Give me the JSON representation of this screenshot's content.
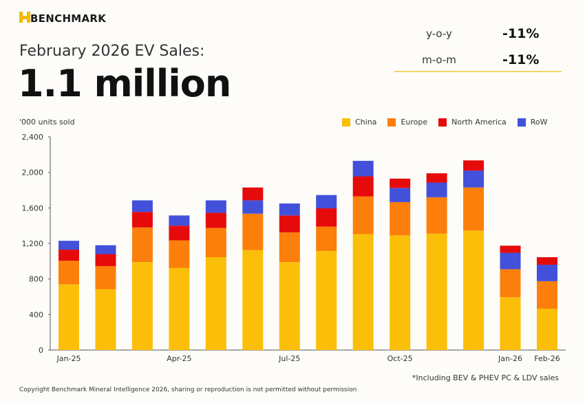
{
  "brand": {
    "name": "BENCHMARK"
  },
  "header": {
    "title": "February 2026 EV Sales:",
    "headline": "1.1 million"
  },
  "kpis": [
    {
      "label": "y-o-y",
      "value": "-11%"
    },
    {
      "label": "m-o-m",
      "value": "-11%"
    }
  ],
  "footnote": "*Including BEV & PHEV PC & LDV sales",
  "copyright": "Copyright Benchmark Mineral Intelligence 2026, sharing or reproduction is not permitted without permission",
  "chart_data": {
    "type": "bar",
    "stacked": true,
    "ylabel": "'000 units sold",
    "ylim": [
      0,
      2400
    ],
    "yticks": [
      "0",
      "400",
      "800",
      "1,200",
      "1,600",
      "2,000",
      "2,400"
    ],
    "ytick_values": [
      0,
      400,
      800,
      1200,
      1600,
      2000,
      2400
    ],
    "categories": [
      "Jan-25",
      "Feb-25",
      "Mar-25",
      "Apr-25",
      "May-25",
      "Jun-25",
      "Jul-25",
      "Aug-25",
      "Sep-25",
      "Oct-25",
      "Nov-25",
      "Dec-25",
      "Jan-26",
      "Feb-26"
    ],
    "xtick_labels": [
      "Jan-25",
      "",
      "",
      "Apr-25",
      "",
      "",
      "Jul-25",
      "",
      "",
      "Oct-25",
      "",
      "",
      "Jan-26",
      "Feb-26"
    ],
    "legend_position": "top-right",
    "grid": false,
    "series": [
      {
        "name": "China",
        "color": "#fbbf0a",
        "values": [
          740,
          685,
          990,
          925,
          1045,
          1125,
          990,
          1115,
          1305,
          1290,
          1310,
          1345,
          595,
          465
        ]
      },
      {
        "name": "Europe",
        "color": "#fb7f0a",
        "values": [
          265,
          260,
          390,
          310,
          330,
          410,
          335,
          275,
          425,
          375,
          410,
          485,
          315,
          310
        ]
      },
      {
        "name": "North America",
        "color": "#e60b0b",
        "values": [
          125,
          135,
          175,
          165,
          170,
          145,
          190,
          205,
          225,
          105,
          105,
          115,
          80,
          85
        ]
      },
      {
        "name": "RoW",
        "color": "#4350da",
        "values": [
          100,
          100,
          130,
          115,
          140,
          150,
          135,
          150,
          175,
          160,
          165,
          190,
          185,
          185
        ]
      }
    ]
  }
}
